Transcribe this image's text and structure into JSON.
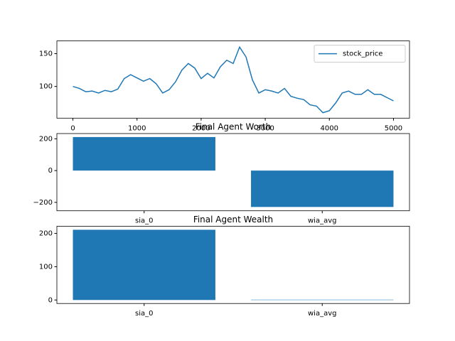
{
  "chart_data": [
    {
      "type": "line",
      "x": [
        0,
        100,
        200,
        300,
        400,
        500,
        600,
        700,
        800,
        900,
        1000,
        1100,
        1200,
        1300,
        1400,
        1500,
        1600,
        1700,
        1800,
        1900,
        2000,
        2100,
        2200,
        2300,
        2400,
        2500,
        2600,
        2700,
        2800,
        2900,
        3000,
        3100,
        3200,
        3300,
        3400,
        3500,
        3600,
        3700,
        3800,
        3900,
        4000,
        4100,
        4200,
        4300,
        4400,
        4500,
        4600,
        4700,
        4800,
        4900,
        5000
      ],
      "series": [
        {
          "name": "stock_price",
          "color": "#1f77b4",
          "values": [
            100,
            97,
            92,
            93,
            90,
            94,
            92,
            96,
            112,
            118,
            113,
            108,
            112,
            104,
            90,
            95,
            107,
            125,
            135,
            128,
            112,
            120,
            113,
            130,
            140,
            135,
            160,
            145,
            110,
            90,
            95,
            93,
            90,
            97,
            85,
            82,
            80,
            72,
            70,
            60,
            63,
            75,
            90,
            93,
            88,
            88,
            95,
            88,
            88,
            83,
            78
          ]
        }
      ],
      "xlim": [
        -250,
        5250
      ],
      "xticks": [
        0,
        1000,
        2000,
        3000,
        4000,
        5000
      ],
      "ylim": [
        51.7,
        169.4
      ],
      "yticks": [
        100,
        150
      ],
      "legend": "upper right"
    },
    {
      "type": "bar",
      "title": "Final Agent Worth",
      "categories": [
        "sia_0",
        "wia_avg"
      ],
      "values": [
        211,
        -229
      ],
      "color": "#1f77b4",
      "ylim": [
        -253,
        233
      ],
      "yticks": [
        {
          "value": -200,
          "label": "−200"
        },
        0,
        200
      ]
    },
    {
      "type": "bar",
      "title": "Final Agent Wealth",
      "categories": [
        "sia_0",
        "wia_avg"
      ],
      "values": [
        211,
        1
      ],
      "color": "#1f77b4",
      "ylim": [
        -10.5,
        221.5
      ],
      "yticks": [
        0,
        100,
        200
      ]
    }
  ]
}
